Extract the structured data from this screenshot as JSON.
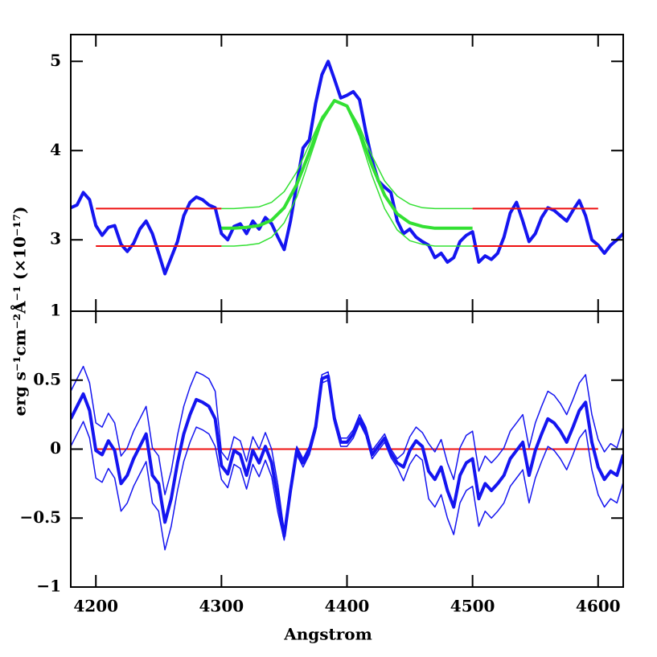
{
  "chart_data": [
    {
      "type": "line",
      "ylabel": "erg s⁻¹cm⁻²Å⁻¹ (×10⁻¹⁷)",
      "xlim": [
        4180,
        4620
      ],
      "ylim": [
        2.2,
        5.3
      ],
      "yticks": [
        3,
        4,
        5
      ],
      "x": [
        4180,
        4185,
        4190,
        4195,
        4200,
        4205,
        4210,
        4215,
        4220,
        4225,
        4230,
        4235,
        4240,
        4245,
        4250,
        4255,
        4260,
        4265,
        4270,
        4275,
        4280,
        4285,
        4290,
        4295,
        4300,
        4305,
        4310,
        4315,
        4320,
        4325,
        4330,
        4335,
        4340,
        4345,
        4350,
        4355,
        4360,
        4365,
        4370,
        4375,
        4380,
        4385,
        4390,
        4395,
        4400,
        4405,
        4410,
        4415,
        4420,
        4425,
        4430,
        4435,
        4440,
        4445,
        4450,
        4455,
        4460,
        4465,
        4470,
        4475,
        4480,
        4485,
        4490,
        4495,
        4500,
        4505,
        4510,
        4515,
        4520,
        4525,
        4530,
        4535,
        4540,
        4545,
        4550,
        4555,
        4560,
        4565,
        4570,
        4575,
        4580,
        4585,
        4590,
        4595,
        4600,
        4605,
        4610,
        4615,
        4620
      ],
      "series": [
        {
          "color": "#1515f0",
          "width": 4,
          "values": [
            3.36,
            3.39,
            3.53,
            3.45,
            3.16,
            3.05,
            3.14,
            3.16,
            2.95,
            2.87,
            2.96,
            3.12,
            3.21,
            3.07,
            2.85,
            2.62,
            2.8,
            2.98,
            3.27,
            3.42,
            3.48,
            3.45,
            3.39,
            3.36,
            3.07,
            3.0,
            3.15,
            3.18,
            3.07,
            3.21,
            3.12,
            3.25,
            3.18,
            3.03,
            2.89,
            3.21,
            3.62,
            4.03,
            4.12,
            4.53,
            4.85,
            5.0,
            4.8,
            4.59,
            4.62,
            4.66,
            4.57,
            4.21,
            3.89,
            3.66,
            3.59,
            3.53,
            3.21,
            3.07,
            3.12,
            3.03,
            2.98,
            2.94,
            2.8,
            2.85,
            2.75,
            2.8,
            2.98,
            3.05,
            3.09,
            2.75,
            2.82,
            2.78,
            2.85,
            3.03,
            3.3,
            3.42,
            3.21,
            2.98,
            3.07,
            3.25,
            3.36,
            3.33,
            3.27,
            3.21,
            3.33,
            3.44,
            3.27,
            3.0,
            2.94,
            2.85,
            2.94,
            3.0,
            3.07
          ]
        },
        {
          "color": "#ee1111",
          "width": 2,
          "x": [
            4200,
            4300,
            4400,
            4500,
            4600
          ],
          "values": [
            3.35,
            3.35,
            null,
            3.35,
            3.35
          ]
        },
        {
          "color": "#ee1111",
          "width": 2,
          "x": [
            4200,
            4300,
            4400,
            4500,
            4600
          ],
          "values": [
            2.93,
            2.93,
            null,
            2.93,
            2.93
          ]
        },
        {
          "color": "#33e033",
          "width": 1.5,
          "x": [
            4300,
            4310,
            4320,
            4330,
            4340,
            4350,
            4360,
            4370,
            4380,
            4390,
            4400,
            4410,
            4420,
            4430,
            4440,
            4450,
            4460,
            4470,
            4480,
            4490,
            4500
          ],
          "values": [
            3.35,
            3.35,
            3.36,
            3.37,
            3.42,
            3.54,
            3.76,
            4.07,
            4.38,
            4.56,
            4.51,
            4.27,
            3.94,
            3.66,
            3.49,
            3.4,
            3.36,
            3.35,
            3.35,
            3.35,
            3.35
          ]
        },
        {
          "color": "#33e033",
          "width": 1.5,
          "x": [
            4300,
            4310,
            4320,
            4330,
            4340,
            4350,
            4360,
            4370,
            4380,
            4390,
            4400,
            4410,
            4420,
            4430,
            4440,
            4450,
            4460,
            4470,
            4480,
            4490,
            4500
          ],
          "values": [
            2.93,
            2.93,
            2.94,
            2.96,
            3.03,
            3.19,
            3.48,
            3.9,
            4.32,
            4.55,
            4.49,
            4.16,
            3.72,
            3.35,
            3.11,
            2.99,
            2.95,
            2.93,
            2.93,
            2.93,
            2.93
          ]
        },
        {
          "color": "#33e033",
          "width": 4,
          "x": [
            4300,
            4310,
            4320,
            4330,
            4340,
            4350,
            4360,
            4370,
            4380,
            4390,
            4400,
            4410,
            4420,
            4430,
            4440,
            4450,
            4460,
            4470,
            4480,
            4490,
            4500
          ],
          "values": [
            3.13,
            3.13,
            3.14,
            3.16,
            3.22,
            3.36,
            3.62,
            3.98,
            4.35,
            4.56,
            4.5,
            4.21,
            3.83,
            3.5,
            3.29,
            3.19,
            3.15,
            3.13,
            3.13,
            3.13,
            3.13
          ]
        }
      ]
    },
    {
      "type": "line",
      "xlabel": "Angstrom",
      "xlim": [
        4180,
        4620
      ],
      "xticks": [
        4200,
        4300,
        4400,
        4500,
        4600
      ],
      "ylim": [
        -1,
        1
      ],
      "yticks": [
        {
          "value": -1,
          "label": "−1"
        },
        {
          "value": -0.5,
          "label": "−0.5"
        },
        0,
        0.5,
        1
      ],
      "x": [
        4180,
        4185,
        4190,
        4195,
        4200,
        4205,
        4210,
        4215,
        4220,
        4225,
        4230,
        4235,
        4240,
        4245,
        4250,
        4255,
        4260,
        4265,
        4270,
        4275,
        4280,
        4285,
        4290,
        4295,
        4300,
        4305,
        4310,
        4315,
        4320,
        4325,
        4330,
        4335,
        4340,
        4345,
        4350,
        4355,
        4360,
        4365,
        4370,
        4375,
        4380,
        4385,
        4390,
        4395,
        4400,
        4405,
        4410,
        4415,
        4420,
        4425,
        4430,
        4435,
        4440,
        4445,
        4450,
        4455,
        4460,
        4465,
        4470,
        4475,
        4480,
        4485,
        4490,
        4495,
        4500,
        4505,
        4510,
        4515,
        4520,
        4525,
        4530,
        4535,
        4540,
        4545,
        4550,
        4555,
        4560,
        4565,
        4570,
        4575,
        4580,
        4585,
        4590,
        4595,
        4600,
        4605,
        4610,
        4615,
        4620
      ],
      "series": [
        {
          "color": "#ee1111",
          "width": 2,
          "x": [
            4200,
            4600
          ],
          "values": [
            0,
            0
          ]
        },
        {
          "color": "#1515f0",
          "width": 1.5,
          "values": [
            0.42,
            0.51,
            0.6,
            0.48,
            0.19,
            0.16,
            0.26,
            0.19,
            -0.05,
            0.01,
            0.13,
            0.22,
            0.31,
            0.01,
            -0.05,
            -0.33,
            -0.16,
            0.1,
            0.31,
            0.45,
            0.56,
            0.54,
            0.51,
            0.42,
            -0.02,
            -0.08,
            0.09,
            0.06,
            -0.09,
            0.09,
            0.0,
            0.12,
            0.0,
            -0.26,
            -0.6,
            -0.27,
            0.02,
            -0.07,
            0.02,
            0.19,
            0.54,
            0.56,
            0.25,
            0.08,
            0.08,
            0.14,
            0.25,
            0.16,
            -0.01,
            0.05,
            0.11,
            0.0,
            -0.07,
            -0.03,
            0.09,
            0.16,
            0.12,
            0.04,
            -0.02,
            0.07,
            -0.1,
            -0.22,
            0.01,
            0.1,
            0.13,
            -0.16,
            -0.05,
            -0.1,
            -0.05,
            0.01,
            0.13,
            0.19,
            0.25,
            0.01,
            0.19,
            0.31,
            0.42,
            0.39,
            0.33,
            0.25,
            0.36,
            0.48,
            0.54,
            0.25,
            0.07,
            -0.02,
            0.04,
            0.01,
            0.16
          ]
        },
        {
          "color": "#1515f0",
          "width": 1.5,
          "values": [
            0.02,
            0.11,
            0.2,
            0.08,
            -0.21,
            -0.24,
            -0.14,
            -0.21,
            -0.45,
            -0.39,
            -0.27,
            -0.18,
            -0.09,
            -0.39,
            -0.45,
            -0.73,
            -0.56,
            -0.3,
            -0.09,
            0.05,
            0.16,
            0.14,
            0.11,
            0.02,
            -0.22,
            -0.28,
            -0.11,
            -0.14,
            -0.29,
            -0.11,
            -0.2,
            -0.08,
            -0.2,
            -0.46,
            -0.66,
            -0.33,
            -0.04,
            -0.13,
            -0.04,
            0.13,
            0.48,
            0.5,
            0.19,
            0.02,
            0.02,
            0.08,
            0.19,
            0.1,
            -0.07,
            -0.01,
            0.05,
            -0.06,
            -0.13,
            -0.23,
            -0.11,
            -0.04,
            -0.08,
            -0.36,
            -0.42,
            -0.33,
            -0.5,
            -0.62,
            -0.39,
            -0.3,
            -0.27,
            -0.56,
            -0.45,
            -0.5,
            -0.45,
            -0.39,
            -0.27,
            -0.21,
            -0.15,
            -0.39,
            -0.21,
            -0.09,
            0.02,
            -0.01,
            -0.07,
            -0.15,
            -0.04,
            0.08,
            0.14,
            -0.15,
            -0.33,
            -0.42,
            -0.36,
            -0.39,
            -0.24
          ]
        },
        {
          "color": "#1515f0",
          "width": 4,
          "values": [
            0.22,
            0.31,
            0.4,
            0.28,
            -0.01,
            -0.04,
            0.06,
            -0.01,
            -0.25,
            -0.19,
            -0.07,
            0.02,
            0.11,
            -0.19,
            -0.25,
            -0.53,
            -0.36,
            -0.1,
            0.11,
            0.25,
            0.36,
            0.34,
            0.31,
            0.22,
            -0.12,
            -0.18,
            -0.01,
            -0.04,
            -0.19,
            -0.01,
            -0.1,
            0.02,
            -0.1,
            -0.36,
            -0.63,
            -0.3,
            -0.01,
            -0.1,
            -0.01,
            0.16,
            0.51,
            0.53,
            0.22,
            0.05,
            0.05,
            0.11,
            0.22,
            0.13,
            -0.04,
            0.02,
            0.08,
            -0.03,
            -0.1,
            -0.13,
            -0.01,
            0.06,
            0.02,
            -0.16,
            -0.22,
            -0.13,
            -0.3,
            -0.42,
            -0.19,
            -0.1,
            -0.07,
            -0.36,
            -0.25,
            -0.3,
            -0.25,
            -0.19,
            -0.07,
            -0.01,
            0.05,
            -0.19,
            -0.01,
            0.11,
            0.22,
            0.19,
            0.13,
            0.05,
            0.16,
            0.28,
            0.34,
            0.05,
            -0.13,
            -0.22,
            -0.16,
            -0.19,
            -0.04
          ]
        }
      ]
    }
  ]
}
